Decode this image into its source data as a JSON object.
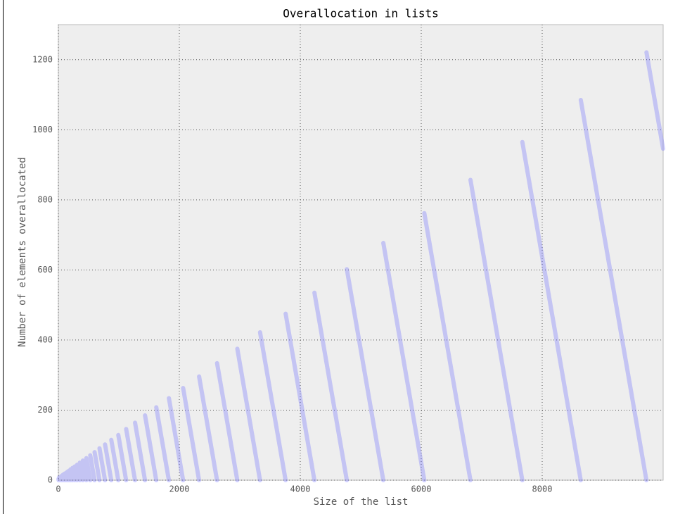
{
  "chart_data": {
    "type": "line",
    "title": "Overallocation in lists",
    "xlabel": "Size of the list",
    "ylabel": "Number of elements overallocated",
    "xlim": [
      0,
      10000
    ],
    "ylim": [
      0,
      1300
    ],
    "xticks": [
      0,
      2000,
      4000,
      6000,
      8000
    ],
    "yticks": [
      0,
      200,
      400,
      600,
      800,
      1000,
      1200
    ],
    "grid": true,
    "series": [
      {
        "color": "#6464ff",
        "x": [
          1,
          4,
          4,
          5,
          8,
          8,
          9,
          16,
          16,
          17,
          25,
          25,
          26,
          35,
          35,
          36,
          46,
          46,
          47,
          58,
          58,
          59,
          72,
          72,
          73,
          88,
          88,
          89,
          106,
          106,
          107,
          126,
          126,
          127,
          148,
          148,
          149,
          173,
          173,
          174,
          201,
          201,
          202,
          233,
          233,
          234,
          269,
          269,
          270,
          309,
          309,
          310,
          354,
          354,
          355,
          405,
          405,
          406,
          462,
          462,
          463,
          526,
          526,
          527,
          598,
          598,
          599,
          679,
          679,
          680,
          771,
          771,
          772,
          874,
          874,
          875,
          990,
          990,
          991,
          1120,
          1120,
          1121,
          1267,
          1267,
          1268,
          1432,
          1432,
          1433,
          1618,
          1618,
          1619,
          1827,
          1827,
          1828,
          2062,
          2062,
          2063,
          2326,
          2326,
          2327,
          2623,
          2623,
          2624,
          2958,
          2958,
          2959,
          3334,
          3334,
          3335,
          3757,
          3757,
          3758,
          4233,
          4233,
          4234,
          4769,
          4769,
          4770,
          5372,
          5372,
          5373,
          6050,
          6050,
          6051,
          6813,
          6813,
          6814,
          7671,
          7671,
          7672,
          8637,
          8637,
          8638,
          9723,
          9723,
          9724,
          9999
        ],
        "values": [
          3,
          0,
          null,
          3,
          0,
          null,
          7,
          0,
          null,
          8,
          0,
          null,
          9,
          0,
          null,
          10,
          0,
          null,
          11,
          0,
          null,
          13,
          0,
          null,
          15,
          0,
          null,
          17,
          0,
          null,
          19,
          0,
          null,
          21,
          0,
          null,
          24,
          0,
          null,
          27,
          0,
          null,
          31,
          0,
          null,
          35,
          0,
          null,
          39,
          0,
          null,
          44,
          0,
          null,
          50,
          0,
          null,
          56,
          0,
          null,
          63,
          0,
          null,
          71,
          0,
          null,
          80,
          0,
          null,
          91,
          0,
          null,
          102,
          0,
          null,
          115,
          0,
          null,
          129,
          0,
          null,
          146,
          0,
          null,
          164,
          0,
          null,
          185,
          0,
          null,
          208,
          0,
          null,
          234,
          0,
          null,
          263,
          0,
          null,
          296,
          0,
          null,
          334,
          0,
          null,
          375,
          0,
          null,
          422,
          0,
          null,
          475,
          0,
          null,
          535,
          0,
          null,
          602,
          0,
          null,
          677,
          0,
          null,
          762,
          0,
          null,
          857,
          0,
          null,
          965,
          0,
          null,
          1085,
          0,
          null,
          1221,
          946
        ]
      }
    ]
  }
}
